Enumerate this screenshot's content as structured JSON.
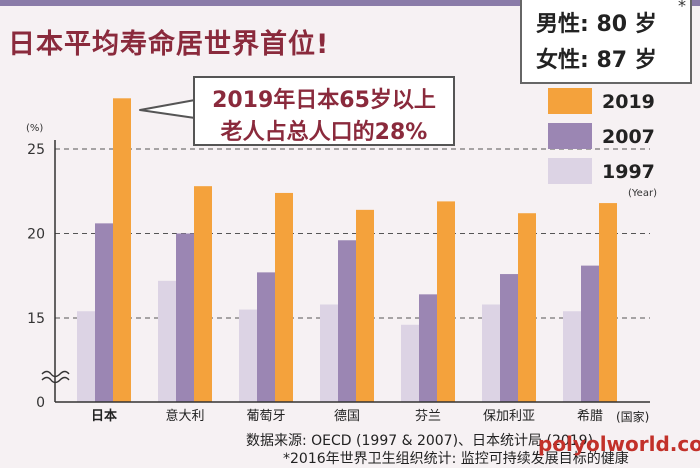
{
  "title": "日本平均寿命居世界首位!",
  "life_expectancy": {
    "male": "男性: 80 岁",
    "female": "女性: 87 岁",
    "asterisk": "*"
  },
  "callout": {
    "line1": "2019年日本65岁以上",
    "line2": "老人占总人口的28%"
  },
  "source": "数据来源: OECD (1997 & 2007)、日本统计局 (2019)",
  "footnote": "*2016年世界卫生组织统计: 监控可持续发展目标的健康",
  "watermark": "polyolworld.com",
  "colors": {
    "accent": "#8a2a3c",
    "stripe": "#8a7ba8",
    "background": "#f6f1f3",
    "s2019": "#f4a23c",
    "s2007": "#9b86b3",
    "s1997": "#dcd3e4"
  },
  "chart_data": {
    "type": "bar",
    "unit_label": "(%)",
    "year_label": "(Year)",
    "country_label": "(国家)",
    "categories": [
      "日本",
      "意大利",
      "葡萄牙",
      "德国",
      "芬兰",
      "保加利亚",
      "希腊"
    ],
    "series": [
      {
        "name": "1997",
        "values": [
          15.4,
          17.2,
          15.5,
          15.8,
          14.6,
          15.8,
          15.4
        ]
      },
      {
        "name": "2007",
        "values": [
          20.6,
          20.0,
          17.7,
          19.6,
          16.4,
          17.6,
          18.1
        ]
      },
      {
        "name": "2019",
        "values": [
          28.0,
          22.8,
          22.4,
          21.4,
          21.9,
          21.2,
          21.8
        ]
      }
    ],
    "legend_order": [
      "2019",
      "2007",
      "1997"
    ],
    "yticks": [
      0,
      15,
      20,
      25
    ],
    "ylim": [
      0,
      25
    ],
    "axis_break": true,
    "grid": true,
    "legend_position": "right"
  }
}
